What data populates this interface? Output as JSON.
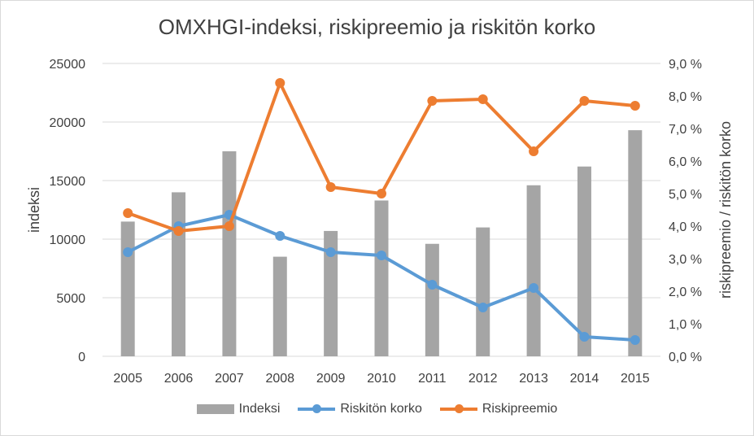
{
  "chart_data": {
    "type": "bar+line",
    "title": "OMXHGI-indeksi, riskipreemio ja riskitön korko",
    "categories": [
      "2005",
      "2006",
      "2007",
      "2008",
      "2009",
      "2010",
      "2011",
      "2012",
      "2013",
      "2014",
      "2015"
    ],
    "left_axis": {
      "label": "indeksi",
      "ylim": [
        0,
        25000
      ],
      "ticks": [
        "0",
        "5000",
        "10000",
        "15000",
        "20000",
        "25000"
      ],
      "tick_values": [
        0,
        5000,
        10000,
        15000,
        20000,
        25000
      ]
    },
    "right_axis": {
      "label": "riskipreemio / riskitön korko",
      "ylim": [
        0.0,
        9.0
      ],
      "ticks": [
        "0,0 %",
        "1,0 %",
        "2,0 %",
        "3,0 %",
        "4,0 %",
        "5,0 %",
        "6,0 %",
        "7,0 %",
        "8,0 %",
        "9,0 %"
      ],
      "tick_values": [
        0,
        1,
        2,
        3,
        4,
        5,
        6,
        7,
        8,
        9
      ]
    },
    "series": [
      {
        "name": "Indeksi",
        "type": "bar",
        "axis": "left",
        "color": "#a5a5a5",
        "values": [
          11500,
          14000,
          17500,
          8500,
          10700,
          13300,
          9600,
          11000,
          14600,
          16200,
          19300
        ]
      },
      {
        "name": "Riskitön korko",
        "type": "line",
        "axis": "right",
        "color": "#5b9bd5",
        "values": [
          3.2,
          4.0,
          4.35,
          3.7,
          3.2,
          3.1,
          2.2,
          1.5,
          2.1,
          0.6,
          0.5
        ]
      },
      {
        "name": "Riskipreemio",
        "type": "line",
        "axis": "right",
        "color": "#ed7d31",
        "values": [
          4.4,
          3.85,
          4.0,
          8.4,
          5.2,
          5.0,
          7.85,
          7.9,
          6.3,
          7.85,
          7.7
        ]
      }
    ],
    "grid": true,
    "legend_position": "bottom"
  }
}
